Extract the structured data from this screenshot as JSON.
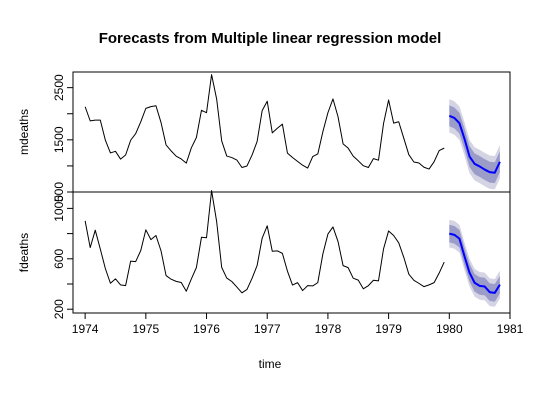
{
  "chart_data": {
    "type": "line",
    "title": "Forecasts from Multiple linear regression model",
    "xlabel": "time",
    "xlim": [
      1973.8,
      1981.0
    ],
    "x_ticks": [
      1974,
      1975,
      1976,
      1977,
      1978,
      1979,
      1980,
      1981
    ],
    "colors": {
      "history": "#000000",
      "forecast": "#0000ff",
      "pi80": "#9c9cc9",
      "pi95": "#d4d4e4"
    },
    "panels": [
      {
        "ylabel": "mdeaths",
        "ylim": [
          500,
          2800
        ],
        "y_ticks": [
          500,
          1500,
          2500
        ],
        "y_tick_labels": [
          "500",
          "1500",
          "2500"
        ],
        "extra_y_ticks": [
          1000,
          2000
        ],
        "series": [
          {
            "role": "history",
            "start": 1974.0,
            "step": 0.08333,
            "values": [
              2134,
              1863,
              1877,
              1877,
              1492,
              1249,
              1280,
              1131,
              1209,
              1492,
              1621,
              1846,
              2103,
              2137,
              2153,
              1833,
              1403,
              1288,
              1186,
              1133,
              1053,
              1347,
              1545,
              2066,
              2020,
              2750,
              2283,
              1479,
              1189,
              1160,
              1113,
              970,
              999,
              1208,
              1467,
              2059,
              2240,
              1634,
              1722,
              1801,
              1246,
              1162,
              1087,
              1013,
              959,
              1179,
              1229,
              1655,
              2019,
              2284,
              1942,
              1423,
              1340,
              1187,
              1098,
              1004,
              970,
              1140,
              1110,
              1812,
              2263,
              1820,
              1846,
              1531,
              1215,
              1075,
              1056,
              975,
              940,
              1081,
              1294,
              1341
            ]
          },
          {
            "role": "forecast",
            "start": 1980.0,
            "step": 0.08333,
            "values": [
              1960,
              1920,
              1820,
              1520,
              1180,
              1040,
              990,
              930,
              880,
              870,
              1080
            ],
            "lo80": [
              1760,
              1720,
              1620,
              1320,
              980,
              840,
              790,
              730,
              680,
              670,
              880
            ],
            "hi80": [
              2160,
              2120,
              2020,
              1720,
              1380,
              1240,
              1190,
              1130,
              1080,
              1070,
              1280
            ],
            "lo95": [
              1640,
              1600,
              1500,
              1200,
              860,
              720,
              670,
              610,
              560,
              550,
              760
            ],
            "hi95": [
              2280,
              2240,
              2140,
              1840,
              1500,
              1360,
              1310,
              1250,
              1200,
              1190,
              1400
            ]
          }
        ]
      },
      {
        "ylabel": "fdeaths",
        "ylim": [
          170,
          1130
        ],
        "y_ticks": [
          200,
          600,
          1000
        ],
        "y_tick_labels": [
          "200",
          "600",
          "1000"
        ],
        "extra_y_ticks": [
          400,
          800
        ],
        "series": [
          {
            "role": "history",
            "start": 1974.0,
            "step": 0.08333,
            "values": [
              901,
              689,
              827,
              677,
              522,
              406,
              441,
              393,
              387,
              582,
              578,
              666,
              830,
              752,
              785,
              664,
              467,
              438,
              421,
              412,
              343,
              440,
              531,
              771,
              767,
              1141,
              896,
              532,
              447,
              420,
              376,
              330,
              357,
              445,
              546,
              764,
              862,
              660,
              663,
              643,
              502,
              392,
              411,
              348,
              387,
              385,
              411,
              638,
              796,
              853,
              737,
              546,
              530,
              446,
              431,
              362,
              387,
              430,
              425,
              679,
              821,
              785,
              727,
              612,
              478,
              429,
              405,
              379,
              393,
              411,
              487,
              574
            ]
          },
          {
            "role": "forecast",
            "start": 1980.0,
            "step": 0.08333,
            "values": [
              800,
              790,
              760,
              620,
              490,
              410,
              385,
              380,
              335,
              330,
              395
            ],
            "lo80": [
              730,
              720,
              690,
              550,
              420,
              340,
              315,
              310,
              265,
              260,
              325
            ],
            "hi80": [
              870,
              860,
              830,
              690,
              560,
              480,
              455,
              450,
              405,
              400,
              465
            ],
            "lo95": [
              690,
              680,
              650,
              510,
              380,
              300,
              275,
              270,
              225,
              220,
              285
            ],
            "hi95": [
              910,
              900,
              870,
              730,
              600,
              520,
              495,
              490,
              445,
              440,
              505
            ]
          }
        ]
      }
    ]
  }
}
